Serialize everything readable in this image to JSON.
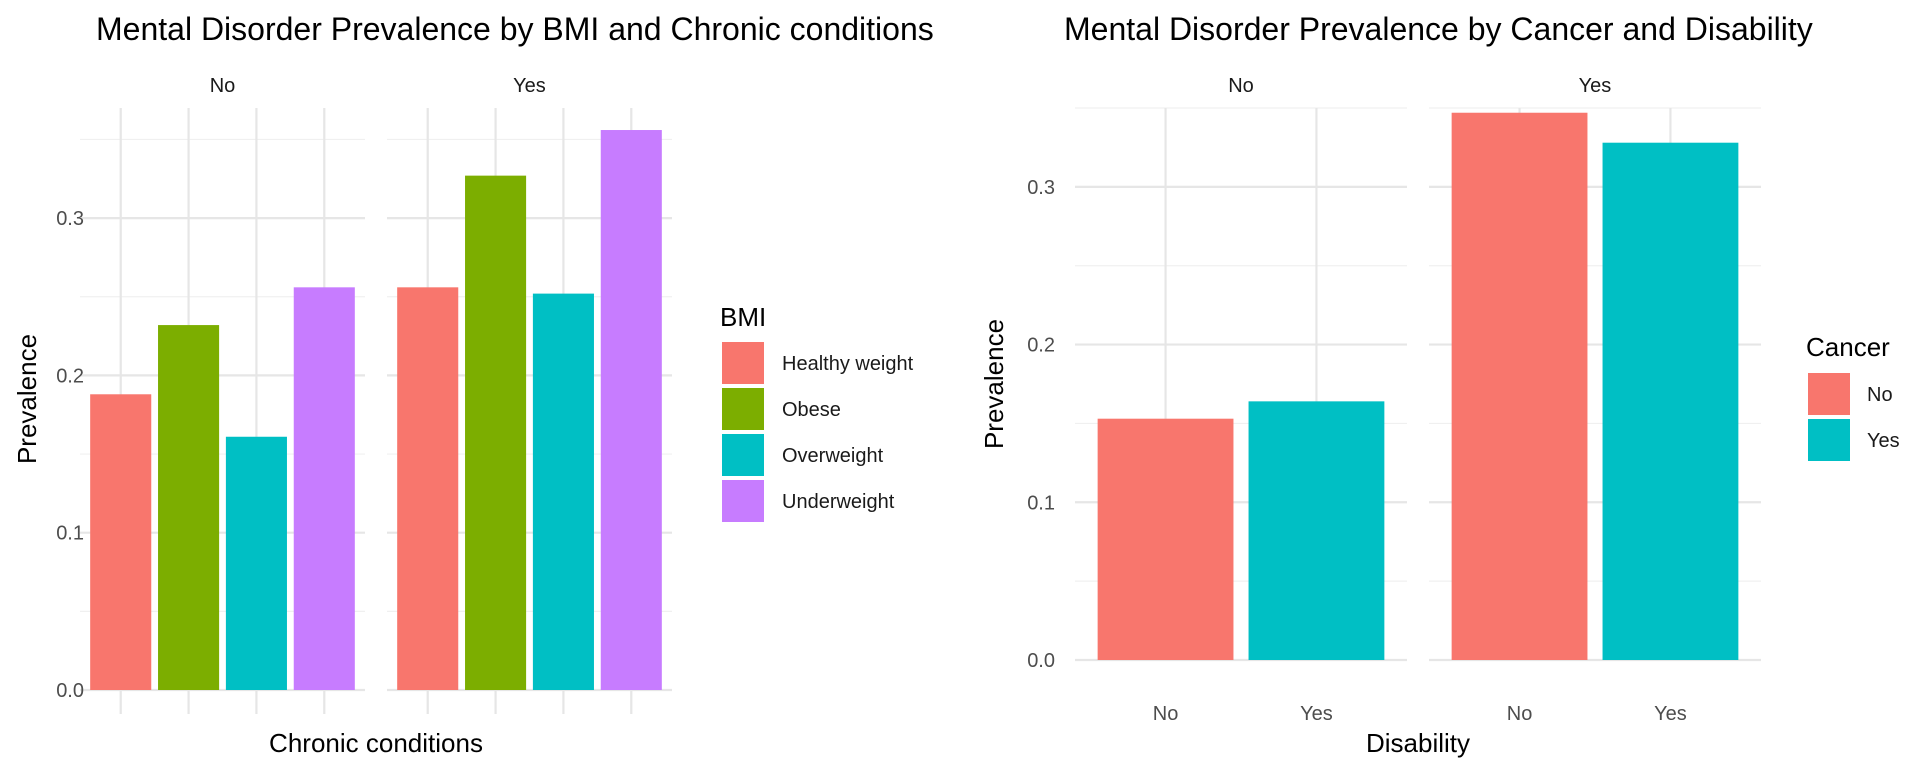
{
  "chart_data": [
    {
      "type": "bar",
      "title": "Mental Disorder Prevalence by BMI and Chronic conditions",
      "xlabel": "Chronic conditions",
      "ylabel": "Prevalence",
      "facets": [
        "No",
        "Yes"
      ],
      "categories": [
        "Healthy weight",
        "Obese",
        "Overweight",
        "Underweight"
      ],
      "show_x_tick_labels": false,
      "ylim": [
        0,
        0.37
      ],
      "yticks": [
        0.0,
        0.1,
        0.2,
        0.3
      ],
      "ytick_labels": [
        "0.0",
        "0.1",
        "0.2",
        "0.3"
      ],
      "legend": {
        "title": "BMI",
        "position": "right",
        "entries": [
          "Healthy weight",
          "Obese",
          "Overweight",
          "Underweight"
        ]
      },
      "colors": [
        "#F8766D",
        "#7CAE00",
        "#00BFC4",
        "#C77CFF"
      ],
      "values": {
        "No": [
          0.188,
          0.232,
          0.161,
          0.256
        ],
        "Yes": [
          0.256,
          0.327,
          0.252,
          0.356
        ]
      }
    },
    {
      "type": "bar",
      "title": "Mental Disorder Prevalence by Cancer and Disability",
      "xlabel": "Disability",
      "ylabel": "Prevalence",
      "facets": [
        "No",
        "Yes"
      ],
      "categories": [
        "No",
        "Yes"
      ],
      "show_x_tick_labels": true,
      "ylim": [
        0,
        0.35
      ],
      "yticks": [
        0.0,
        0.1,
        0.2,
        0.3
      ],
      "ytick_labels": [
        "0.0",
        "0.1",
        "0.2",
        "0.3"
      ],
      "legend": {
        "title": "Cancer",
        "position": "right",
        "entries": [
          "No",
          "Yes"
        ]
      },
      "colors": [
        "#F8766D",
        "#00BFC4"
      ],
      "values": {
        "No": [
          0.153,
          0.164
        ],
        "Yes": [
          0.347,
          0.328
        ]
      }
    }
  ]
}
